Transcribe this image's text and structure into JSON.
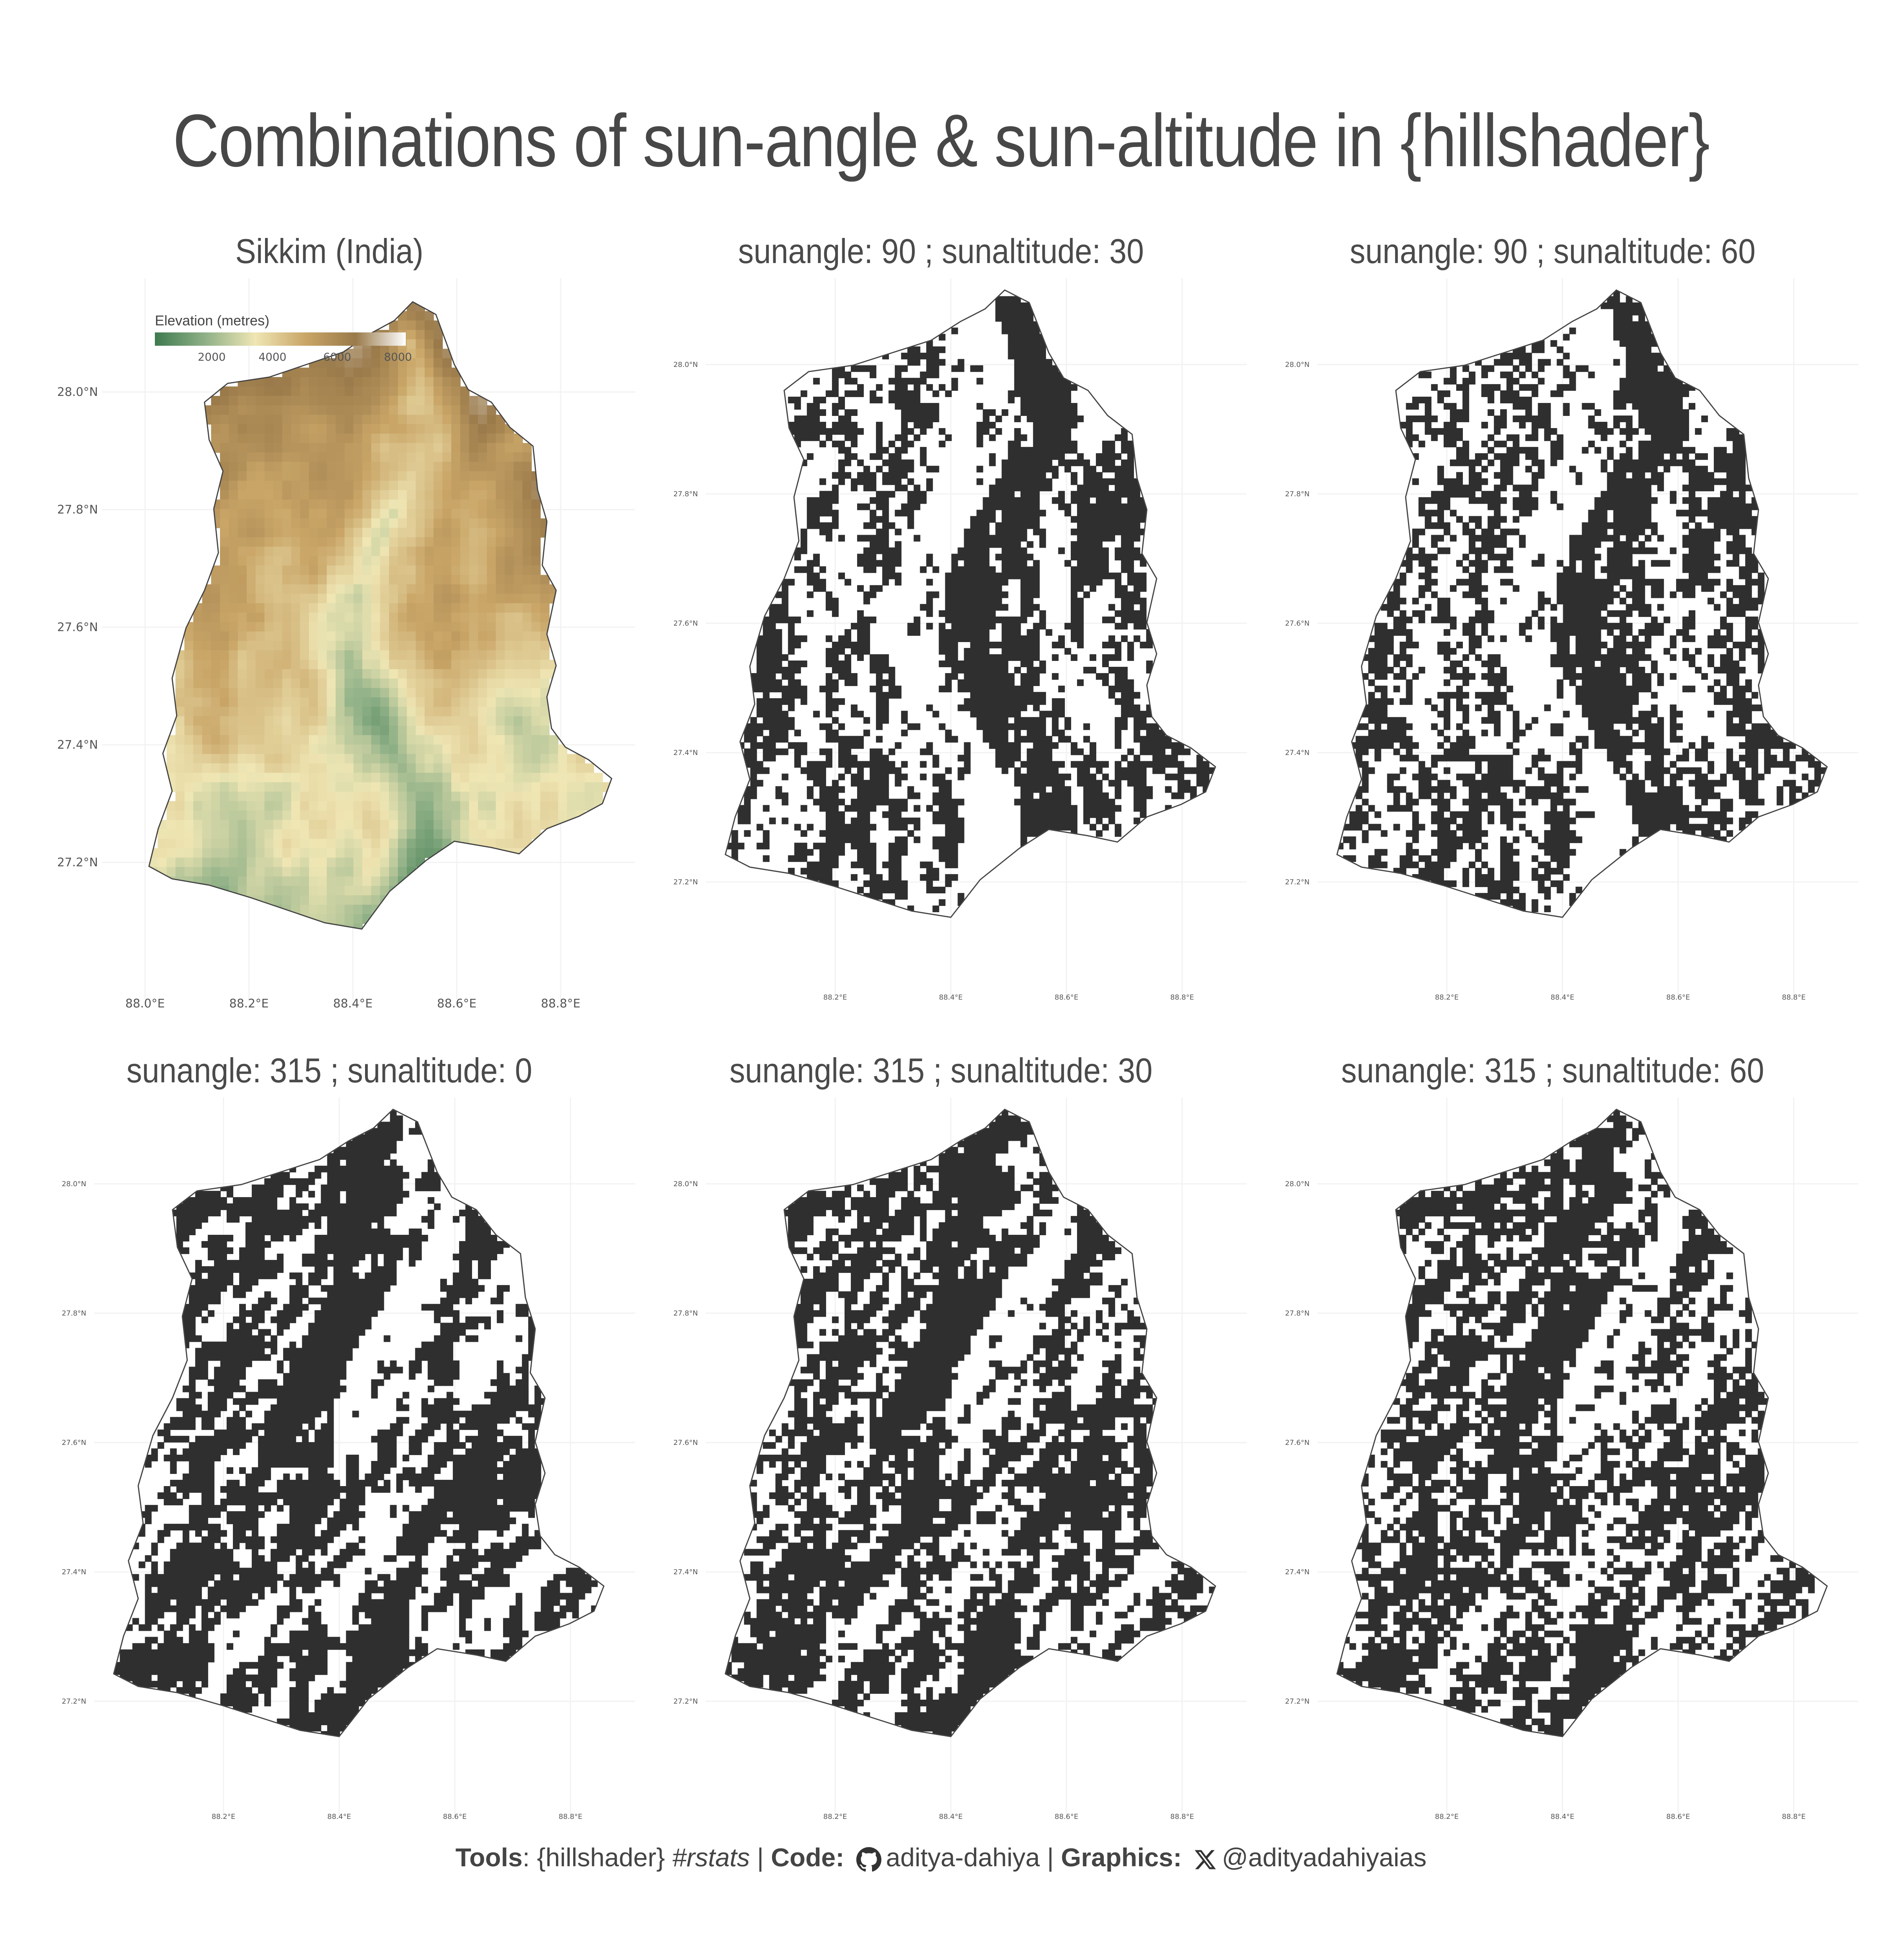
{
  "title": "Combinations of sun-angle & sun-altitude in {hillshader}",
  "panels": [
    {
      "title": "Sikkim (India)",
      "kind": "elevation"
    },
    {
      "title": "sunangle: 90  ; sunaltitude: 30",
      "kind": "hillshade",
      "sunangle": 90,
      "sunaltitude": 30
    },
    {
      "title": "sunangle: 90  ; sunaltitude: 60",
      "kind": "hillshade",
      "sunangle": 90,
      "sunaltitude": 60
    },
    {
      "title": "sunangle: 315  ; sunaltitude: 0",
      "kind": "hillshade",
      "sunangle": 315,
      "sunaltitude": 0
    },
    {
      "title": "sunangle: 315  ; sunaltitude: 30",
      "kind": "hillshade",
      "sunangle": 315,
      "sunaltitude": 30
    },
    {
      "title": "sunangle: 315  ; sunaltitude: 60",
      "kind": "hillshade",
      "sunangle": 315,
      "sunaltitude": 60
    }
  ],
  "axes": {
    "lat_ticks": [
      "28.0°N",
      "27.8°N",
      "27.6°N",
      "27.4°N",
      "27.2°N"
    ],
    "lon_ticks_main": [
      "88.0°E",
      "88.2°E",
      "88.4°E",
      "88.6°E",
      "88.8°E"
    ],
    "lon_ticks_small": [
      "88.2°E",
      "88.4°E",
      "88.6°E",
      "88.8°E"
    ]
  },
  "legend": {
    "title": "Elevation (metres)",
    "ticks": [
      "2000",
      "4000",
      "6000",
      "8000"
    ],
    "colors": [
      "#3f7a4f",
      "#8fb087",
      "#efe6b4",
      "#c9a567",
      "#9a7a4a",
      "#ffffff"
    ]
  },
  "caption": {
    "tools_label": "Tools",
    "tools_text": ": {hillshader} ",
    "rstats": "#rstats",
    "sep1": " | ",
    "code_label": "Code:",
    "github_user": "aditya-dahiya",
    "sep2": "  | ",
    "graphics_label": "Graphics:",
    "x_user": "@adityadahiyaias",
    "icons": [
      "github-icon",
      "x-icon"
    ]
  },
  "colors": {
    "shade": "#2f2f2f",
    "outline": "#444444",
    "grid": "#f2f2f2"
  }
}
